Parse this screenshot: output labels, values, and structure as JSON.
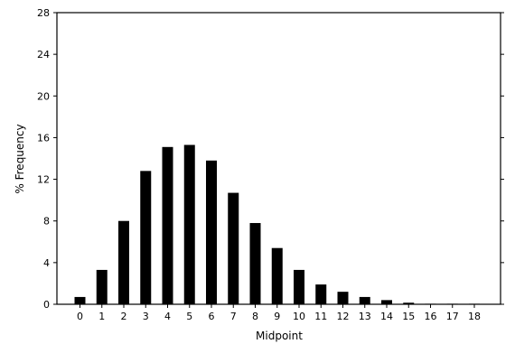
{
  "chart_data": {
    "type": "bar",
    "xlabel": "Midpoint",
    "ylabel": "% Frequency",
    "categories": [
      "0",
      "1",
      "2",
      "3",
      "4",
      "5",
      "6",
      "7",
      "8",
      "9",
      "10",
      "11",
      "12",
      "13",
      "14",
      "15",
      "16",
      "17",
      "18"
    ],
    "values": [
      0.7,
      3.3,
      8.0,
      12.8,
      15.1,
      15.3,
      13.8,
      10.7,
      7.8,
      5.4,
      3.3,
      1.9,
      1.2,
      0.7,
      0.4,
      0.15,
      0.05,
      0.05,
      0.05
    ],
    "ylim": [
      0,
      28
    ],
    "yticks": [
      0,
      4,
      8,
      12,
      16,
      20,
      24,
      28
    ],
    "bar_color": "#000000",
    "grid": false
  }
}
